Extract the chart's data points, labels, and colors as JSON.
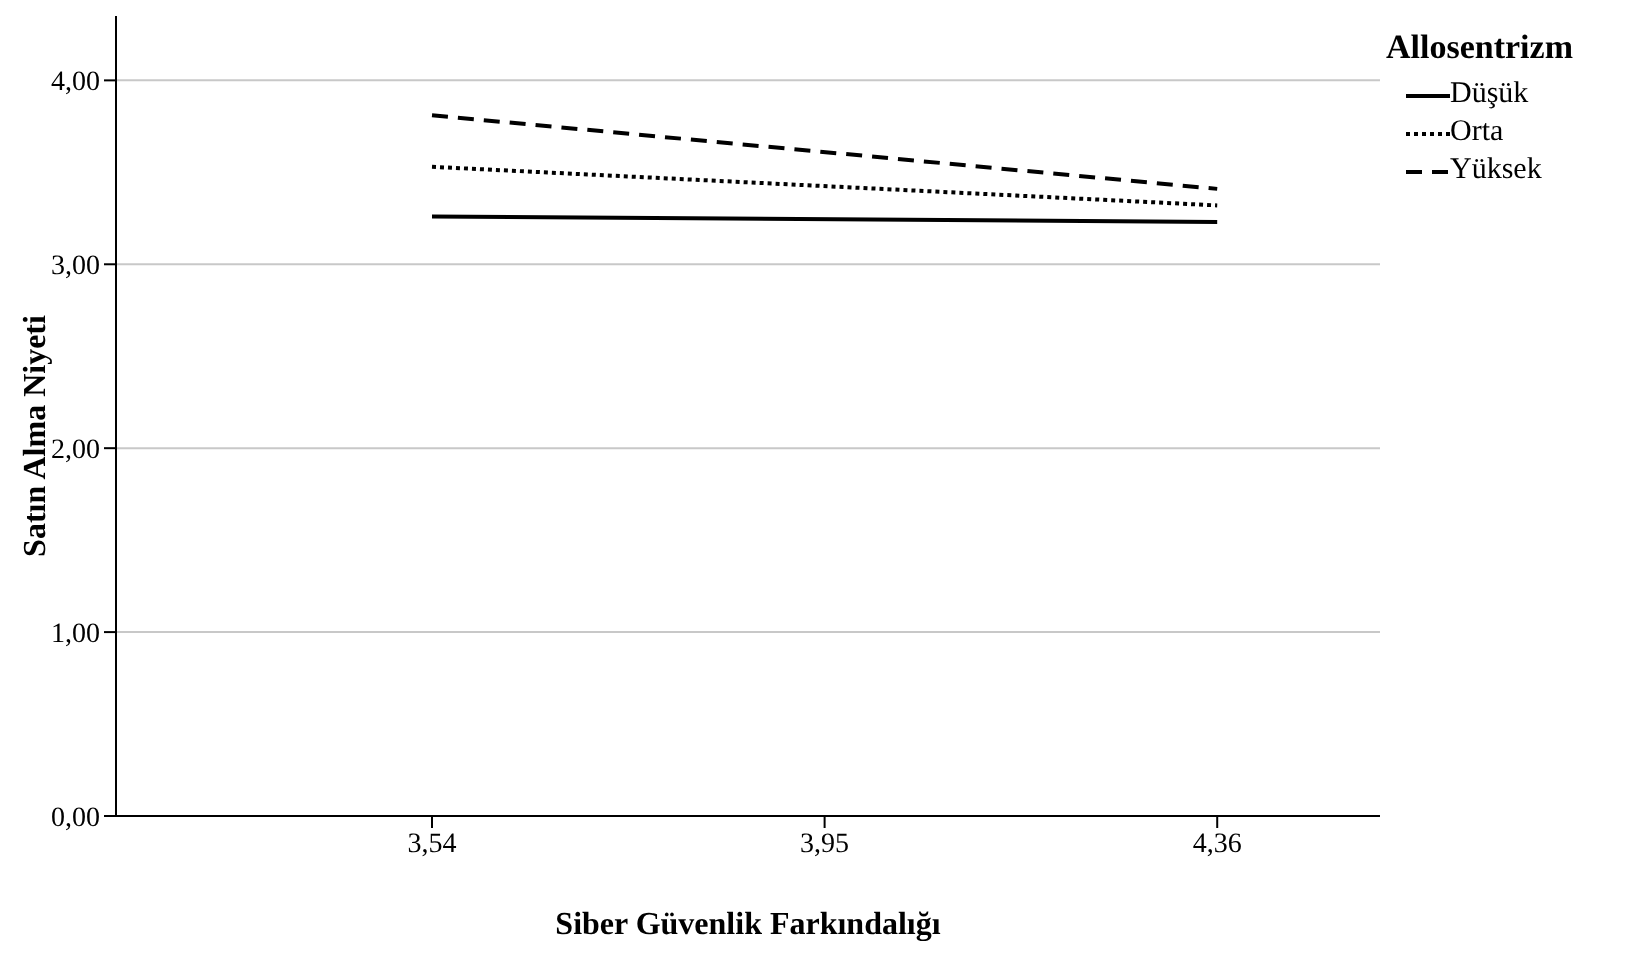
{
  "chart_data": {
    "type": "line",
    "xlabel": "Siber Güvenlik Farkındalığı",
    "ylabel": "Satın Alma Niyeti",
    "legend_title": "Allosentrizm",
    "x": [
      3.54,
      4.36
    ],
    "series": [
      {
        "name": "Düşük",
        "color": "#000000",
        "values": [
          3.26,
          3.23
        ],
        "line_style": "solid"
      },
      {
        "name": "Orta",
        "color": "#000000",
        "values": [
          3.53,
          3.32
        ],
        "line_style": "dotted"
      },
      {
        "name": "Yüksek",
        "color": "#000000",
        "values": [
          3.81,
          3.41
        ],
        "line_style": "dashed"
      }
    ],
    "xlim": [
      3.21,
      4.53
    ],
    "xticks": [
      {
        "value": 3.54,
        "label": "3,54"
      },
      {
        "value": 3.95,
        "label": "3,95"
      },
      {
        "value": 4.36,
        "label": "4,36"
      }
    ],
    "ylim": [
      0,
      4.35
    ],
    "yticks": [
      {
        "value": 0,
        "label": "0,00"
      },
      {
        "value": 1,
        "label": "1,00"
      },
      {
        "value": 2,
        "label": "2,00"
      },
      {
        "value": 3,
        "label": "3,00"
      },
      {
        "value": 4,
        "label": "4,00"
      }
    ],
    "grid": "y",
    "legend": "top right",
    "marker": "none"
  }
}
